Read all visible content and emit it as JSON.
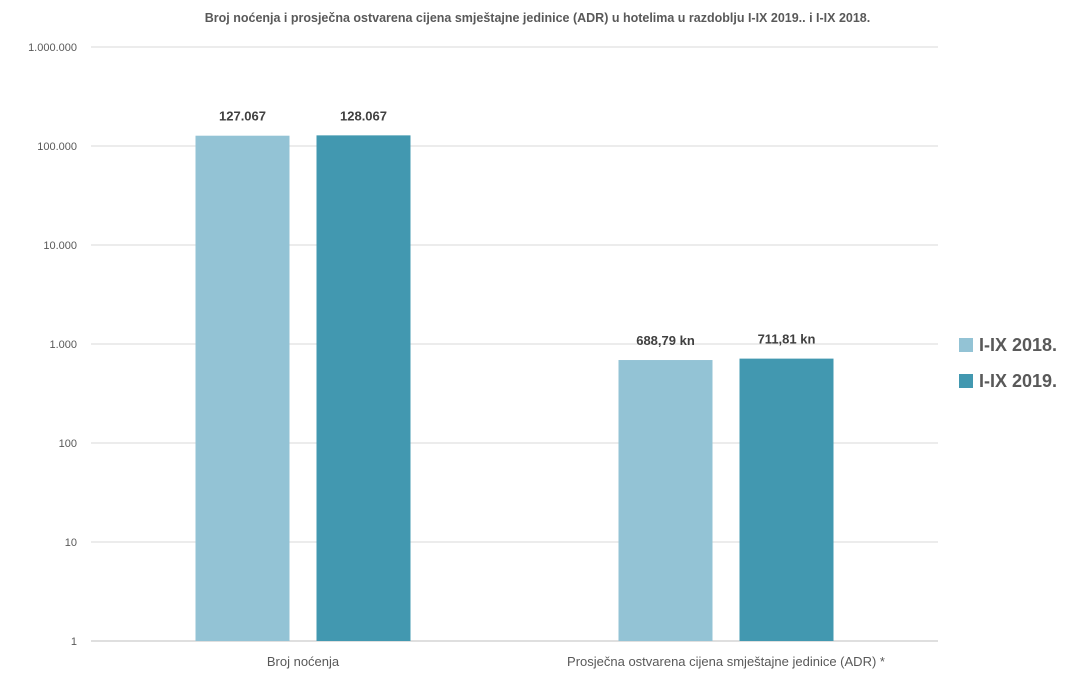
{
  "chart_data": {
    "type": "bar",
    "title": "Broj noćenja i prosječna ostvarena cijena smještajne jedinice (ADR) u hotelima u razdoblju I-IX 2019.. i I-IX 2018.",
    "xlabel": "",
    "ylabel": "",
    "y_scale": "log",
    "ylim": [
      1,
      1000000
    ],
    "y_ticks": [
      1,
      10,
      100,
      1000,
      10000,
      100000,
      1000000
    ],
    "y_tick_labels": [
      "1",
      "10",
      "100",
      "1.000",
      "10.000",
      "100.000",
      "1.000.000"
    ],
    "grid": true,
    "legend_position": "right",
    "categories": [
      "Broj noćenja",
      "Prosječna ostvarena cijena smještajne jedinice (ADR) *"
    ],
    "series": [
      {
        "name": "I-IX 2018.",
        "color": "#93c3d5",
        "values": [
          127067,
          688.79
        ],
        "labels": [
          "127.067",
          "688,79 kn"
        ]
      },
      {
        "name": "I-IX 2019.",
        "color": "#4298b0",
        "values": [
          128067,
          711.81
        ],
        "labels": [
          "128.067",
          "711,81 kn"
        ]
      }
    ]
  }
}
